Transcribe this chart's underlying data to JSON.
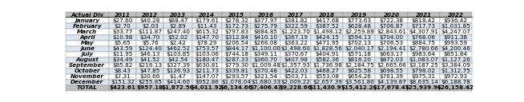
{
  "header": [
    "Actual Div",
    "2011",
    "2012",
    "2013",
    "2014",
    "2015",
    "2016",
    "2017",
    "2018",
    "2019",
    "2020",
    "2021",
    "2022"
  ],
  "rows": [
    [
      "January",
      "$27.60",
      "$40.28",
      "$88.47",
      "$179.61",
      "$278.32",
      "$377.97",
      "$381.82",
      "$417.68",
      "$773.63",
      "$722.38",
      "$818.42",
      "$936.42"
    ],
    [
      "February",
      "$2.70",
      "$2.03",
      "$2.89",
      "$11.43",
      "$172.73",
      "$275.79",
      "$322.59",
      "$387.52",
      "$628.48",
      "$706.87",
      "$717.73",
      "$1,031.85"
    ],
    [
      "March",
      "$33.77",
      "$111.87",
      "$247.40",
      "$615.32",
      "$797.83",
      "$884.85",
      "$1,223.70",
      "$1,498.12",
      "$2,259.89",
      "$2,843.61",
      "$4,307.91",
      "$4,247.07"
    ],
    [
      "April",
      "$10.98",
      "$34.70",
      "$52.02",
      "$147.70",
      "$312.84",
      "$410.10",
      "$367.19",
      "$424.15",
      "$594.13",
      "$704.00",
      "$768.06",
      "$911.38"
    ],
    [
      "May",
      "$5.65",
      "$5.76",
      "$2.42",
      "$78.29",
      "$206.54",
      "$266.08",
      "$363.22",
      "$471.95",
      "$702.13",
      "$706.53",
      "$884.75",
      "$993.59"
    ],
    [
      "June",
      "$43.59",
      "$124.40",
      "$462.52",
      "$753.57",
      "$844.17",
      "$1,100.00",
      "$1,498.60",
      "$1,828.56",
      "$2,040.17",
      "$2,194.41",
      "$2,780.66",
      "$4,200.46"
    ],
    [
      "July",
      "$11.95",
      "$46.13",
      "$103.85",
      "$103.06",
      "$744.18",
      "$349.11",
      "$370.67",
      "$404.91",
      "$571.18",
      "$663.17",
      "$983.64",
      "$851.84"
    ],
    [
      "August",
      "$34.49",
      "$41.52",
      "$42.54",
      "$180.47",
      "$287.33",
      "$360.70",
      "$407.98",
      "$582.36",
      "$816.20",
      "$872.03",
      "$1,083.07",
      "$1,127.26"
    ],
    [
      "September",
      "$85.82",
      "$216.13",
      "$327.39",
      "$630.81",
      "$779.30",
      "$1,009.48",
      "$1,357.93",
      "$1,736.98",
      "$2,184.75",
      "$2,665.66",
      "$3,187.25",
      "$3,384.09"
    ],
    [
      "October",
      "$8.43",
      "$47.85",
      "$126.93",
      "$211.73",
      "$339.81",
      "$370.48",
      "$422.03",
      "$468.27",
      "$625.58",
      "$698.55",
      "$798.02",
      "$1,312.75"
    ],
    [
      "November",
      "$7.31",
      "$30.66",
      "$1.47",
      "$147.07",
      "$293.57",
      "$321.54",
      "$503.71",
      "$553.08",
      "$654.26",
      "$761.39",
      "$975.31",
      "$972.93"
    ],
    [
      "December",
      "$151.32",
      "$255.85",
      "$414.60",
      "$952.86",
      "$1,078.04",
      "$1,680.33",
      "$2,009.22",
      "$2,657.39",
      "$3,561.80",
      "$4,139.87",
      "$8,635.14",
      "$6,188.78"
    ]
  ],
  "total_row": [
    "TOTAL",
    "$423.61",
    "$957.18",
    "$1,872.50",
    "$4,011.92",
    "$6,134.66",
    "$7,406.43",
    "$9,228.66",
    "$11,430.97",
    "$15,412.20",
    "$17,678.47",
    "$25,939.96",
    "$26,158.42"
  ],
  "header_bg": "#bfbfbf",
  "total_bg": "#bfbfbf",
  "row_bg_odd": "#ffffff",
  "row_bg_even": "#dce6f1",
  "edge_color": "#888888",
  "font_size": 5.2,
  "figsize": [
    6.54,
    1.28
  ],
  "dpi": 100,
  "col_widths": [
    1.3,
    0.82,
    0.82,
    0.85,
    0.88,
    0.88,
    0.88,
    0.92,
    0.96,
    0.96,
    0.96,
    0.96,
    0.96
  ]
}
